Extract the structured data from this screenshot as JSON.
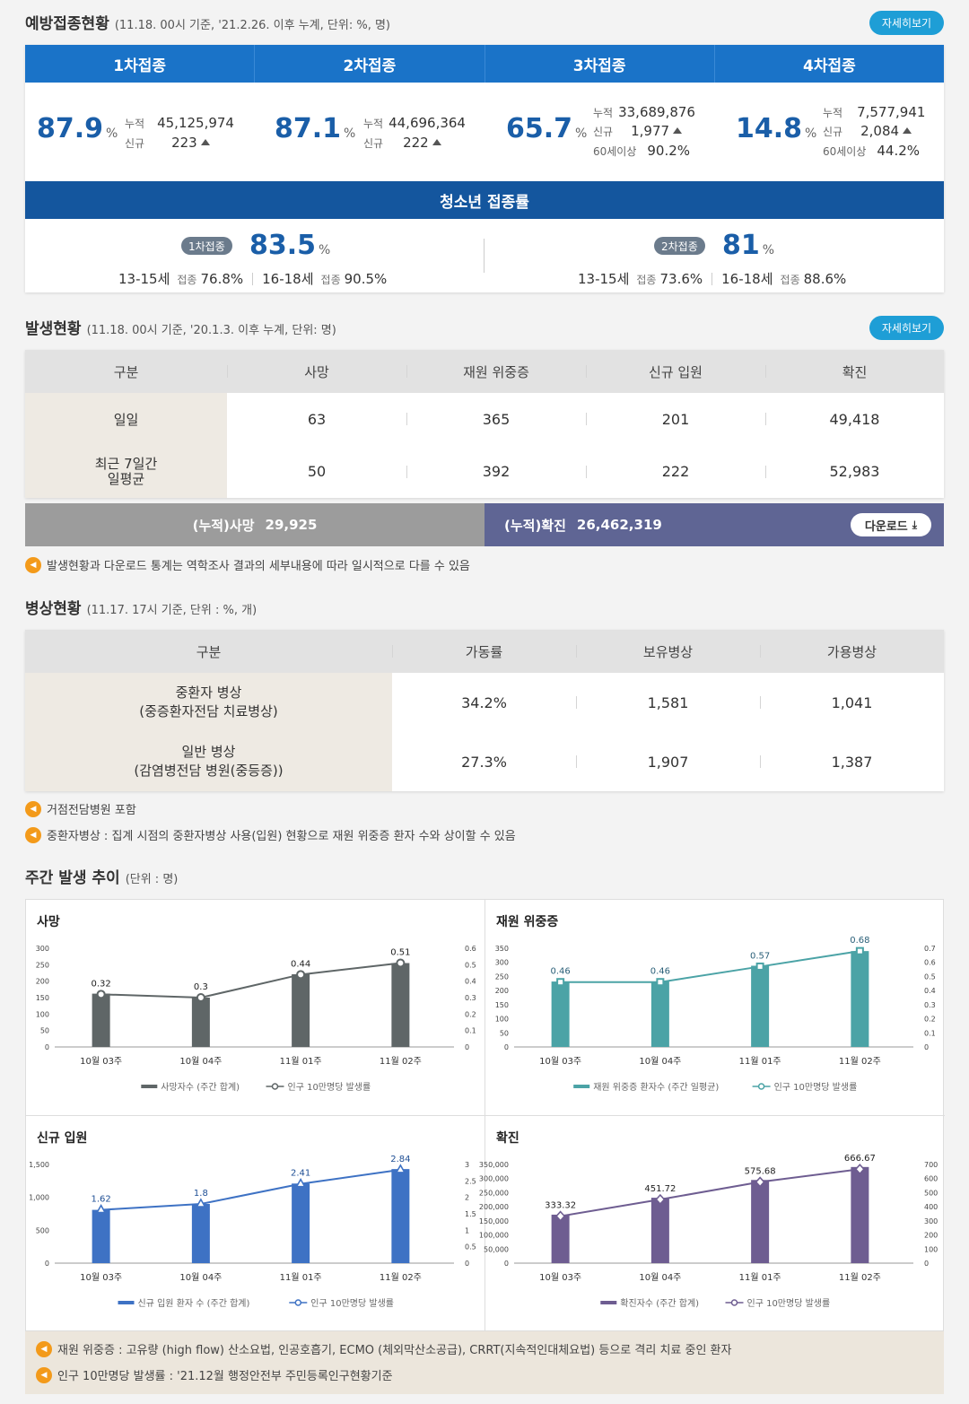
{
  "vaccination": {
    "title": "예방접종현황",
    "subtitle": "(11.18. 00시 기준, '21.2.26. 이후 누계, 단위: %, 명)",
    "more": "자세히보기",
    "doses": [
      {
        "label": "1차접종",
        "pct": "87.9",
        "cum": "45,125,974",
        "new": "223"
      },
      {
        "label": "2차접종",
        "pct": "87.1",
        "cum": "44,696,364",
        "new": "222"
      },
      {
        "label": "3차접종",
        "pct": "65.7",
        "cum": "33,689,876",
        "new": "1,977",
        "over60": "90.2%"
      },
      {
        "label": "4차접종",
        "pct": "14.8",
        "cum": "7,577,941",
        "new": "2,084",
        "over60": "44.2%"
      }
    ],
    "unit": "%",
    "k_cum": "누적",
    "k_new": "신규",
    "k_60": "60세이상",
    "teen": {
      "title": "청소년 접종률",
      "k_rate": "접종",
      "first": {
        "label": "1차접종",
        "pct": "83.5",
        "a_age": "13-15세",
        "a_val": "76.8%",
        "b_age": "16-18세",
        "b_val": "90.5%"
      },
      "second": {
        "label": "2차접종",
        "pct": "81",
        "a_age": "13-15세",
        "a_val": "73.6%",
        "b_age": "16-18세",
        "b_val": "88.6%"
      }
    }
  },
  "occurrence": {
    "title": "발생현황",
    "subtitle": "(11.18. 00시 기준, '20.1.3. 이후 누계, 단위: 명)",
    "more": "자세히보기",
    "headers": [
      "구분",
      "사망",
      "재원 위중증",
      "신규 입원",
      "확진"
    ],
    "rows": [
      {
        "cat": "일일",
        "v": [
          "63",
          "365",
          "201",
          "49,418"
        ]
      },
      {
        "cat": "최근 7일간\n일평균",
        "v": [
          "50",
          "392",
          "222",
          "52,983"
        ]
      }
    ],
    "total_death_label": "(누적)사망",
    "total_death": "29,925",
    "total_conf_label": "(누적)확진",
    "total_conf": "26,462,319",
    "download": "다운로드",
    "note": "발생현황과 다운로드 통계는 역학조사 결과의 세부내용에 따라 일시적으로 다를 수 있음"
  },
  "beds": {
    "title": "병상현황",
    "subtitle": "(11.17. 17시 기준, 단위 : %, 개)",
    "headers": [
      "구분",
      "가동률",
      "보유병상",
      "가용병상"
    ],
    "rows": [
      {
        "cat": "중환자 병상\n(중증환자전담 치료병상)",
        "v": [
          "34.2%",
          "1,581",
          "1,041"
        ]
      },
      {
        "cat": "일반 병상\n(감염병전담 병원(중등증))",
        "v": [
          "27.3%",
          "1,907",
          "1,387"
        ]
      }
    ],
    "notes": [
      "거점전담병원 포함",
      "중환자병상 : 집계 시점의 중환자병상 사용(입원) 현황으로 재원 위중증 환자 수와 상이할 수 있음"
    ]
  },
  "weekly": {
    "title": "주간 발생 추이",
    "subtitle": "(단위 : 명)",
    "notes": [
      "재원 위중증 : 고유량 (high flow) 산소요법, 인공호흡기, ECMO (체외막산소공급), CRRT(지속적인대체요법) 등으로 격리 치료 중인 환자",
      "인구 10만명당 발생률 : '21.12월 행정안전부 주민등록인구현황기준"
    ]
  },
  "chart_data": [
    {
      "type": "bar",
      "title": "사망",
      "categories": [
        "10월 03주",
        "10월 04주",
        "11월 01주",
        "11월 02주"
      ],
      "series": [
        {
          "name": "사망자수 (주간 합계)",
          "values": [
            162,
            150,
            221,
            255
          ],
          "color": "#5f6667"
        },
        {
          "name": "인구 10만명당 발생률",
          "values": [
            0.32,
            0.3,
            0.44,
            0.51
          ],
          "color": "#5f6667"
        }
      ],
      "ylim": [
        0,
        300
      ],
      "yticks": [
        "0",
        "50",
        "100",
        "150",
        "200",
        "250",
        "300"
      ],
      "y2lim": [
        0,
        0.6
      ],
      "y2ticks": [
        "0",
        "0.1",
        "0.2",
        "0.3",
        "0.4",
        "0.5",
        "0.6"
      ]
    },
    {
      "type": "bar",
      "title": "재원 위중증",
      "categories": [
        "10월 03주",
        "10월 04주",
        "11월 01주",
        "11월 02주"
      ],
      "series": [
        {
          "name": "재원 위중증 환자수 (주간 일평균)",
          "values": [
            232,
            232,
            288,
            340
          ],
          "color": "#4ba3a6"
        },
        {
          "name": "인구 10만명당 발생률",
          "values": [
            0.46,
            0.46,
            0.57,
            0.68
          ],
          "color": "#4ba3a6"
        }
      ],
      "ylim": [
        0,
        350
      ],
      "yticks": [
        "0",
        "50",
        "100",
        "150",
        "200",
        "250",
        "300",
        "350"
      ],
      "y2lim": [
        0,
        0.7
      ],
      "y2ticks": [
        "0",
        "0.1",
        "0.2",
        "0.3",
        "0.4",
        "0.5",
        "0.6",
        "0.7"
      ]
    },
    {
      "type": "bar",
      "title": "신규 입원",
      "categories": [
        "10월 03주",
        "10월 04주",
        "11월 01주",
        "11월 02주"
      ],
      "series": [
        {
          "name": "신규 입원 환자 수 (주간 합계)",
          "values": [
            810,
            900,
            1210,
            1430
          ],
          "color": "#3e72c4"
        },
        {
          "name": "인구 10만명당 발생률",
          "values": [
            1.62,
            1.8,
            2.41,
            2.84
          ],
          "color": "#3e72c4"
        }
      ],
      "ylim": [
        0,
        1500
      ],
      "yticks": [
        "0",
        "500",
        "1,000",
        "1,500"
      ],
      "y2lim": [
        0,
        3
      ],
      "y2ticks": [
        "0",
        "0.5",
        "1",
        "1.5",
        "2",
        "2.5",
        "3"
      ]
    },
    {
      "type": "bar",
      "title": "확진",
      "categories": [
        "10월 03주",
        "10월 04주",
        "11월 01주",
        "11월 02주"
      ],
      "series": [
        {
          "name": "확진자수 (주간 합계)",
          "values": [
            172000,
            232000,
            295000,
            341000
          ],
          "color": "#6e5d91"
        },
        {
          "name": "인구 10만명당 발생률",
          "values": [
            333.32,
            451.72,
            575.68,
            666.67
          ],
          "color": "#6e5d91"
        }
      ],
      "ylim": [
        0,
        350000
      ],
      "yticks": [
        "0",
        "50,000",
        "100,000",
        "150,000",
        "200,000",
        "250,000",
        "300,000",
        "350,000"
      ],
      "y2lim": [
        0,
        700
      ],
      "y2ticks": [
        "0",
        "100",
        "200",
        "300",
        "400",
        "500",
        "600",
        "700"
      ]
    }
  ]
}
